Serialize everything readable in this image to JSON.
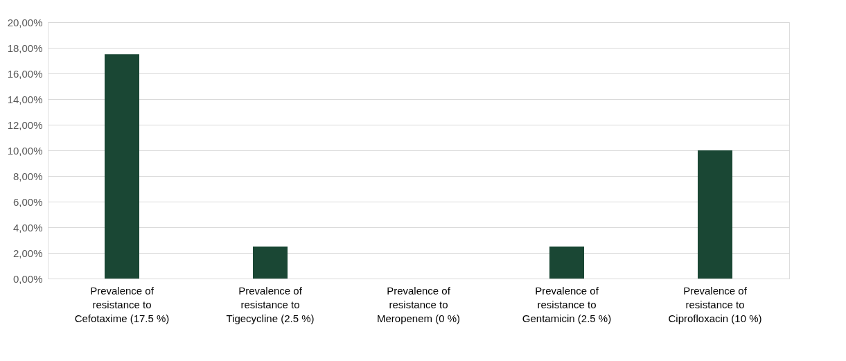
{
  "chart_data": {
    "type": "bar",
    "categories": [
      "Prevalence of resistance to Cefotaxime (17.5 %)",
      "Prevalence of resistance to Tigecycline (2.5 %)",
      "Prevalence of resistance to Meropenem (0 %)",
      "Prevalence of resistance to Gentamicin (2.5 %)",
      "Prevalence of resistance to Ciprofloxacin (10 %)"
    ],
    "values": [
      17.5,
      2.5,
      0,
      2.5,
      10
    ],
    "color": "#1a4734",
    "ylim": [
      0,
      20
    ],
    "yticks": [
      {
        "value": 0,
        "label": "0,00%"
      },
      {
        "value": 2,
        "label": "2,00%"
      },
      {
        "value": 4,
        "label": "4,00%"
      },
      {
        "value": 6,
        "label": "6,00%"
      },
      {
        "value": 8,
        "label": "8,00%"
      },
      {
        "value": 10,
        "label": "10,00%"
      },
      {
        "value": 12,
        "label": "12,00%"
      },
      {
        "value": 14,
        "label": "14,00%"
      },
      {
        "value": 16,
        "label": "16,00%"
      },
      {
        "value": 18,
        "label": "18,00%"
      },
      {
        "value": 20,
        "label": "20,00%"
      }
    ],
    "grid": "y"
  }
}
